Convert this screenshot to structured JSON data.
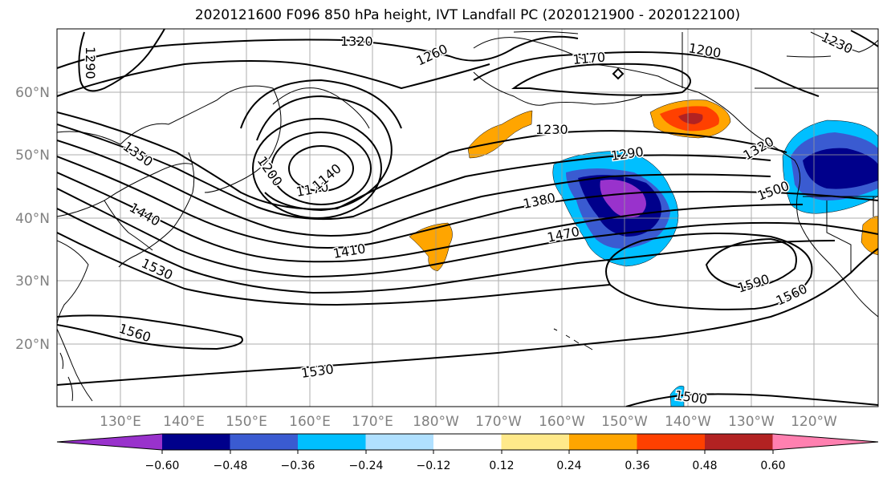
{
  "title": "2020121600 F096 850 hPa height, IVT Landfall PC (2020121900 - 2020122100)",
  "axes": {
    "lon_labels": [
      "130°E",
      "140°E",
      "150°E",
      "160°E",
      "170°E",
      "180°W",
      "170°W",
      "160°W",
      "150°W",
      "140°W",
      "130°W",
      "120°W"
    ],
    "lat_labels": [
      "60°N",
      "50°N",
      "40°N",
      "30°N",
      "20°N"
    ],
    "label_color": "#808080"
  },
  "contour_labels": [
    {
      "text": "1290"
    },
    {
      "text": "1320"
    },
    {
      "text": "1260"
    },
    {
      "text": "1170"
    },
    {
      "text": "1200"
    },
    {
      "text": "1230"
    },
    {
      "text": "1350"
    },
    {
      "text": "1200"
    },
    {
      "text": "1170"
    },
    {
      "text": "1140"
    },
    {
      "text": "1230"
    },
    {
      "text": "1290"
    },
    {
      "text": "1380"
    },
    {
      "text": "1470"
    },
    {
      "text": "1440"
    },
    {
      "text": "1410"
    },
    {
      "text": "1530"
    },
    {
      "text": "1320"
    },
    {
      "text": "1500"
    },
    {
      "text": "1590"
    },
    {
      "text": "1560"
    },
    {
      "text": "1560"
    },
    {
      "text": "1530"
    },
    {
      "text": "1500"
    }
  ],
  "colorbar": {
    "colors": [
      "#9932cc",
      "#00008b",
      "#3a5bd1",
      "#00bfff",
      "#b0e0ff",
      "#ffffff",
      "#ffe98a",
      "#ffa500",
      "#ff4000",
      "#b22222",
      "#ff80b0"
    ],
    "tick_labels": [
      "−0.60",
      "−0.48",
      "−0.36",
      "−0.24",
      "−0.12",
      "0.12",
      "0.24",
      "0.36",
      "0.48",
      "0.60"
    ]
  },
  "shading_colors": {
    "purple": "#9932cc",
    "navy": "#00008b",
    "blue": "#3a5bd1",
    "sky": "#00bfff",
    "orange": "#ffa500",
    "red": "#ff4000",
    "darkred": "#b22222"
  }
}
